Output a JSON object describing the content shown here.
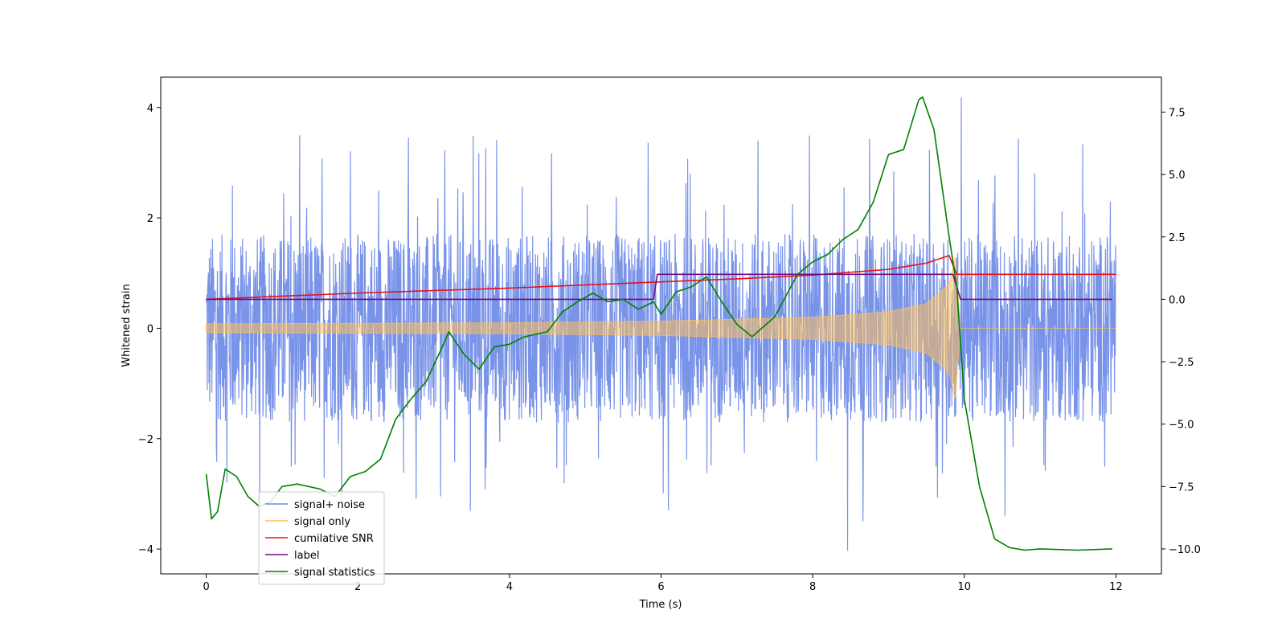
{
  "chart_data": {
    "type": "line",
    "title": "",
    "xlabel": "Time (s)",
    "ylabel": "Whitened strain",
    "y2label": "",
    "xlim": [
      -0.6,
      12.6
    ],
    "ylim": [
      -4.45,
      4.55
    ],
    "y2lim": [
      -11.0,
      8.9
    ],
    "x_ticks": [
      0,
      2,
      4,
      6,
      8,
      10,
      12
    ],
    "y_ticks": [
      -4,
      -2,
      0,
      2,
      4
    ],
    "y2_ticks": [
      -10.0,
      -7.5,
      -5.0,
      -2.5,
      0.0,
      2.5,
      5.0,
      7.5
    ],
    "x_tick_labels": [
      "0",
      "2",
      "4",
      "6",
      "8",
      "10",
      "12"
    ],
    "y_tick_labels": [
      "−4",
      "−2",
      "0",
      "2",
      "4"
    ],
    "y2_tick_labels": [
      "−10.0",
      "−7.5",
      "−5.0",
      "−2.5",
      "0.0",
      "2.5",
      "5.0",
      "7.5"
    ],
    "grid": false,
    "legend_position": "lower-left",
    "series": [
      {
        "name": "signal+ noise",
        "color": "#6a87e6",
        "axis": "left",
        "kind": "noise",
        "x_range": [
          0,
          12
        ],
        "typical_range": [
          -1.8,
          1.8
        ],
        "max": 4.18,
        "min": -4.03
      },
      {
        "name": "signal only",
        "color": "#ffc05a",
        "axis": "left",
        "kind": "chirp",
        "x_range": [
          0,
          12
        ],
        "x": [
          0,
          2,
          4,
          6,
          8,
          9,
          9.5,
          9.8,
          9.88,
          9.95,
          12
        ],
        "envelope": [
          0.08,
          0.09,
          0.1,
          0.13,
          0.2,
          0.3,
          0.45,
          0.8,
          1.3,
          0.0,
          0.0
        ]
      },
      {
        "name": "cumilative SNR",
        "color": "#e8101a",
        "axis": "right",
        "x": [
          0,
          2,
          4,
          6,
          7,
          8,
          9,
          9.5,
          9.8,
          9.9,
          10,
          12
        ],
        "y": [
          0.0,
          0.25,
          0.45,
          0.7,
          0.82,
          0.97,
          1.2,
          1.45,
          1.75,
          1.0,
          1.0,
          1.0
        ]
      },
      {
        "name": "label",
        "color": "#730a84",
        "axis": "right",
        "x": [
          0,
          5.9,
          5.95,
          9.85,
          9.95,
          11.95
        ],
        "y": [
          0.0,
          0.0,
          1.0,
          1.0,
          0.0,
          0.0
        ]
      },
      {
        "name": "signal statistics",
        "color": "#008000",
        "axis": "right",
        "x": [
          0,
          0.07,
          0.15,
          0.25,
          0.4,
          0.55,
          0.7,
          0.85,
          1.0,
          1.2,
          1.5,
          1.7,
          1.9,
          2.1,
          2.3,
          2.5,
          2.7,
          2.9,
          3.1,
          3.2,
          3.4,
          3.6,
          3.8,
          4.0,
          4.2,
          4.5,
          4.7,
          4.9,
          5.1,
          5.3,
          5.5,
          5.7,
          5.9,
          6.0,
          6.2,
          6.4,
          6.6,
          6.8,
          7.0,
          7.2,
          7.5,
          7.8,
          8.0,
          8.2,
          8.4,
          8.6,
          8.8,
          9.0,
          9.2,
          9.4,
          9.45,
          9.6,
          9.8,
          9.9,
          10.0,
          10.2,
          10.4,
          10.6,
          10.8,
          11.0,
          11.5,
          11.95
        ],
        "y": [
          -7.0,
          -8.8,
          -8.5,
          -6.8,
          -7.1,
          -7.9,
          -8.3,
          -8.1,
          -7.5,
          -7.4,
          -7.6,
          -7.9,
          -7.1,
          -6.9,
          -6.4,
          -4.8,
          -4.0,
          -3.3,
          -2.0,
          -1.3,
          -2.2,
          -2.8,
          -1.9,
          -1.8,
          -1.5,
          -1.3,
          -0.5,
          -0.1,
          0.25,
          -0.1,
          0.0,
          -0.4,
          -0.1,
          -0.6,
          0.3,
          0.5,
          0.9,
          -0.1,
          -1.0,
          -1.5,
          -0.7,
          1.0,
          1.5,
          1.8,
          2.4,
          2.8,
          3.9,
          5.8,
          6.0,
          8.0,
          8.1,
          6.8,
          2.5,
          0.5,
          -4.0,
          -7.5,
          -9.6,
          -9.95,
          -10.05,
          -10.0,
          -10.05,
          -10.0
        ]
      }
    ]
  }
}
